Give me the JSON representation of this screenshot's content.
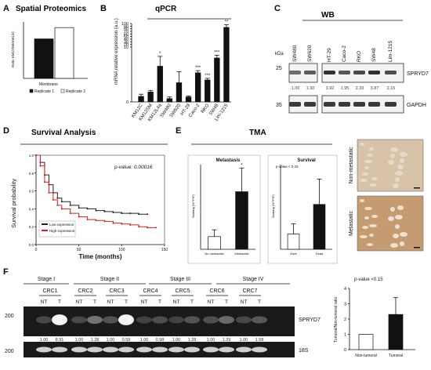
{
  "panels": {
    "A": {
      "letter": "A",
      "title": "Spatial Proteomics"
    },
    "B": {
      "letter": "B",
      "title": "qPCR"
    },
    "C": {
      "letter": "C",
      "title": "WB"
    },
    "D": {
      "letter": "D",
      "title": "Survival Analysis"
    },
    "E": {
      "letter": "E",
      "title": "TMA"
    },
    "F": {
      "letter": "F"
    }
  },
  "colors": {
    "black": "#111111",
    "white": "#ffffff",
    "high": "#e41a1c",
    "low": "#222222",
    "gel": "#1a1a1a",
    "tissue": "#c9a27c"
  },
  "chart_data": [
    {
      "id": "A",
      "type": "bar",
      "title": "Spatial Proteomics",
      "ylabel": "Ratio KM12SM/KM12C",
      "xlabel": "Membrane",
      "ylim": [
        0,
        3
      ],
      "categories": [
        "Membrane"
      ],
      "series": [
        {
          "name": "Replicate 1",
          "values": [
            2.1
          ],
          "color": "#111111"
        },
        {
          "name": "Replicate 2",
          "values": [
            2.7
          ],
          "color": "#ffffff"
        }
      ],
      "legend": "bottom"
    },
    {
      "id": "B",
      "type": "bar",
      "title": "qPCR",
      "ylabel": "mRNA relative expression (a.u.)",
      "ylim": [
        0,
        100
      ],
      "yticks": [
        0,
        10,
        20,
        30,
        40,
        50,
        60,
        70,
        80,
        90,
        100
      ],
      "categories": [
        "KM12C",
        "KM12SM",
        "KM12L4a",
        "SW480",
        "SW620",
        "HT-29",
        "Caco-2",
        "RKO",
        "SW48",
        "Lim-1215"
      ],
      "values": [
        1.0,
        1.8,
        6.5,
        0.6,
        3.5,
        0.9,
        5.3,
        4.0,
        8.0,
        8.5
      ],
      "errors": [
        0.4,
        0.3,
        1.8,
        0.3,
        2.0,
        0.2,
        0.4,
        0.3,
        0.5,
        1.0
      ],
      "annotations": [
        "",
        "",
        "*",
        "",
        "",
        "",
        "***",
        "***",
        "***",
        "**"
      ],
      "axis_break": true
    },
    {
      "id": "C",
      "type": "table",
      "title": "WB",
      "unit": "kDa",
      "lanes": [
        "SW480",
        "SW620",
        "HT-29",
        "Caco-2",
        "RKO",
        "SW48",
        "Lim-1215"
      ],
      "markers": [
        "25",
        "35"
      ],
      "bands": [
        "SPRYD7",
        "GAPDH"
      ],
      "values": [
        "1.00",
        "1.30",
        "3.92",
        "1.95",
        "2.33",
        "3.87",
        "2.15"
      ]
    },
    {
      "id": "D",
      "type": "line",
      "title": "Survival Analysis",
      "xlabel": "Time (months)",
      "ylabel": "Survival probability",
      "xlim": [
        0,
        150
      ],
      "ylim": [
        0,
        1.0
      ],
      "xticks": [
        0,
        50,
        100,
        150
      ],
      "yticks": [
        0.0,
        0.2,
        0.4,
        0.6,
        0.8,
        1.0
      ],
      "annotation": "p-value: 0.00016",
      "series": [
        {
          "name": "Low expression",
          "color": "#222222",
          "x": [
            0,
            5,
            10,
            15,
            20,
            25,
            30,
            40,
            50,
            60,
            70,
            80,
            90,
            100,
            110,
            120,
            130
          ],
          "y": [
            1.0,
            0.92,
            0.78,
            0.67,
            0.58,
            0.52,
            0.48,
            0.44,
            0.41,
            0.4,
            0.38,
            0.37,
            0.36,
            0.35,
            0.35,
            0.34,
            0.34
          ]
        },
        {
          "name": "High expression",
          "color": "#e41a1c",
          "x": [
            0,
            5,
            10,
            15,
            20,
            25,
            30,
            40,
            50,
            60,
            70,
            80,
            90,
            100,
            110,
            120,
            130,
            140
          ],
          "y": [
            1.0,
            0.88,
            0.7,
            0.58,
            0.5,
            0.44,
            0.4,
            0.35,
            0.31,
            0.28,
            0.27,
            0.26,
            0.24,
            0.23,
            0.22,
            0.2,
            0.19,
            0.19
          ]
        }
      ],
      "legend": "bottom-left"
    },
    {
      "id": "E1",
      "type": "bar",
      "title": "Metastasis",
      "ylabel": "Staining (%**PIP)",
      "ylim": [
        0,
        100
      ],
      "categories": [
        "No metastatic",
        "Metastatic"
      ],
      "values": [
        15,
        68
      ],
      "errors": [
        8,
        28
      ],
      "colors": [
        "#ffffff",
        "#111111"
      ],
      "annotations": [
        "",
        "*"
      ]
    },
    {
      "id": "E2",
      "type": "bar",
      "title": "Survival",
      "ylabel": "Staining (%**PIP)",
      "ylim": [
        0,
        100
      ],
      "categories": [
        "Alive",
        "Dead"
      ],
      "values": [
        18,
        53
      ],
      "errors": [
        12,
        30
      ],
      "colors": [
        "#ffffff",
        "#111111"
      ],
      "annotation": "p-value < 0.16"
    },
    {
      "id": "F_gel",
      "type": "table",
      "stages": [
        "Stage I",
        "Stage II",
        "Stage III",
        "Stage IV"
      ],
      "crc": [
        "CRC1",
        "CRC2",
        "CRC3",
        "CRC4",
        "CRC5",
        "CRC6",
        "CRC7"
      ],
      "lanes": [
        "NT",
        "T"
      ],
      "markers": [
        "200",
        "200"
      ],
      "bands": [
        "SPRYD7",
        "18S"
      ],
      "values": [
        "1.00",
        "8.91",
        "1.00",
        "1.28",
        "1.00",
        "0.59",
        "1.00",
        "0.98",
        "1.00",
        "1.28",
        "1.00",
        "1.29",
        "1.00",
        "1.58"
      ]
    },
    {
      "id": "F_bar",
      "type": "bar",
      "ylabel": "Tumoral/Non-tumoral ratio",
      "ylim": [
        0,
        4
      ],
      "yticks": [
        0,
        1,
        2,
        3,
        4
      ],
      "categories": [
        "Non-tumoral",
        "Tumoral"
      ],
      "values": [
        1.0,
        2.3
      ],
      "errors": [
        0,
        1.1
      ],
      "colors": [
        "#ffffff",
        "#111111"
      ],
      "annotation": "p-value <0.15"
    }
  ],
  "tma": {
    "title": "TMA",
    "labels": [
      "Non-metastatic",
      "Metastatic"
    ]
  }
}
